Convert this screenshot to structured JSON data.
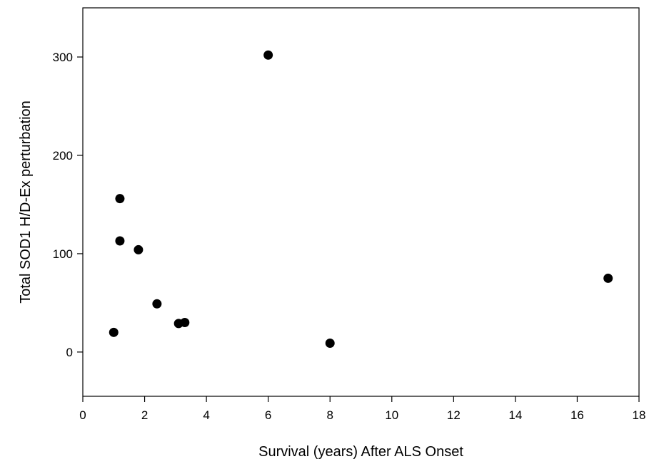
{
  "chart_data": {
    "type": "scatter",
    "xlabel": "Survival (years) After ALS Onset",
    "ylabel": "Total SOD1 H/D-Ex perturbation",
    "xlim": [
      0,
      18
    ],
    "ylim": [
      -45,
      350
    ],
    "x_ticks": [
      0,
      2,
      4,
      6,
      8,
      10,
      12,
      14,
      16,
      18
    ],
    "y_ticks": [
      0,
      100,
      200,
      300
    ],
    "grid": false,
    "legend": "none",
    "marker_color": "#000000",
    "points": [
      {
        "x": 1.0,
        "y": 20
      },
      {
        "x": 1.2,
        "y": 156
      },
      {
        "x": 1.2,
        "y": 113
      },
      {
        "x": 1.8,
        "y": 104
      },
      {
        "x": 2.4,
        "y": 49
      },
      {
        "x": 3.1,
        "y": 29
      },
      {
        "x": 3.3,
        "y": 30
      },
      {
        "x": 6.0,
        "y": 302
      },
      {
        "x": 8.0,
        "y": 9
      },
      {
        "x": 17.0,
        "y": 75
      }
    ]
  }
}
